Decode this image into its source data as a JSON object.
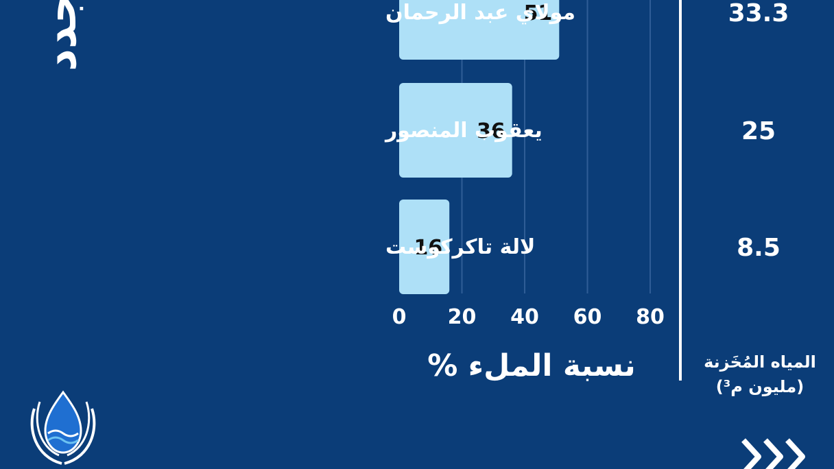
{
  "title_fragment": "جدد",
  "chart_data": {
    "type": "bar",
    "orientation": "horizontal",
    "categories": [
      "مولاي عبد الرحمان",
      "يعقوب المنصور",
      "لالة تاكركوست"
    ],
    "values": [
      51,
      36,
      16
    ],
    "xlabel": "نسبة الملء %",
    "xlim": [
      0,
      80
    ],
    "xticks": [
      0,
      20,
      40,
      60,
      80
    ],
    "grid": true,
    "bar_color": "#aee0f7"
  },
  "stored_water": {
    "header_line1": "المياه المُخَزنة",
    "header_line2": "(مليون م³)",
    "values": [
      "33.3",
      "25",
      "8.5"
    ]
  },
  "colors": {
    "background": "#0b3d78",
    "bar": "#aee0f7",
    "text": "#ffffff"
  },
  "icons": {
    "logo": "water-drop-hands-icon",
    "next": "chevrons-right-icon"
  }
}
